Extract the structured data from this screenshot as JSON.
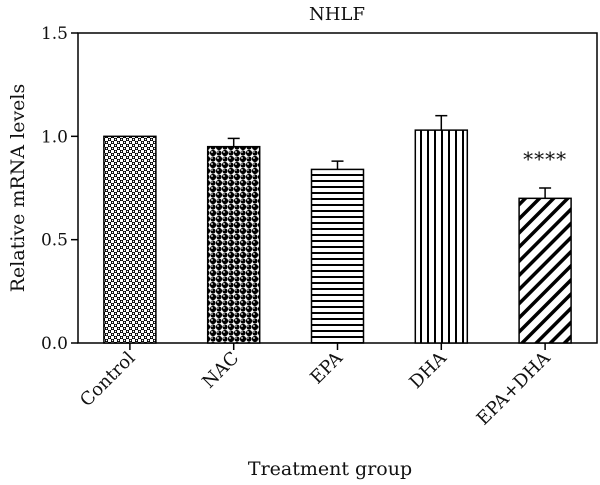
{
  "chart_data": {
    "type": "bar",
    "title": "NHLF",
    "xlabel": "Treatment group",
    "ylabel": "Relative mRNA levels",
    "categories": [
      "Control",
      "NAC",
      "EPA",
      "DHA",
      "EPA+DHA"
    ],
    "values": [
      1.0,
      0.95,
      0.84,
      1.03,
      0.7
    ],
    "error_bars": [
      0.0,
      0.04,
      0.04,
      0.07,
      0.05
    ],
    "patterns": [
      "checker-dense",
      "polka-dot",
      "horizontal-lines",
      "vertical-lines",
      "diagonal-lines"
    ],
    "annotations": [
      {
        "category": "EPA+DHA",
        "text": "****"
      }
    ],
    "ylim": [
      0.0,
      1.5
    ],
    "yticks": [
      "0.0",
      "0.5",
      "1.0",
      "1.5"
    ],
    "grid": false,
    "colors": {
      "bar_fill": "#ffffff",
      "pattern": "#000000",
      "axis": "#000000"
    }
  }
}
